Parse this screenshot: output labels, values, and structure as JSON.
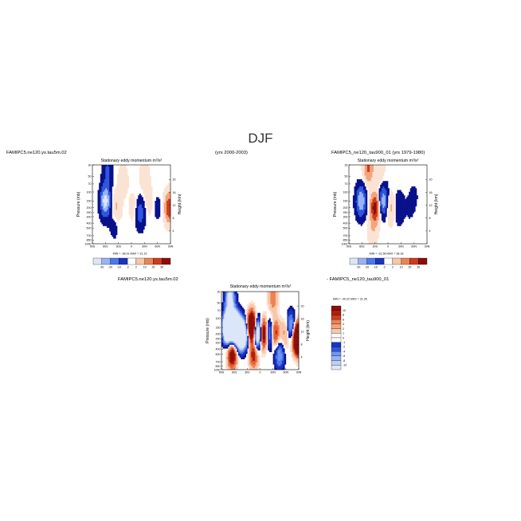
{
  "figure": {
    "title": "DJF",
    "years_top_middle": "(yrs 2000-2003)"
  },
  "colors": {
    "neg": [
      "#08108a",
      "#1a33c2",
      "#2c57de",
      "#4b79ea",
      "#7196f0",
      "#98b3f3",
      "#bccdf6",
      "#dce6fa"
    ],
    "pos": [
      "#fbe3d3",
      "#f8c6a8",
      "#f4a47c",
      "#ee8254",
      "#e25d33",
      "#cd3c1c",
      "#b0200c",
      "#8c0f07"
    ],
    "zero": "#ffffff"
  },
  "chart_data": [
    {
      "id": "panel-1",
      "type": "heatmap",
      "case_label": "FAMIPC5.ne120.ys.tau5m.02",
      "title": "Stationary eddy momentum m²/s²",
      "xlabel": "",
      "ylabel": "Pressure (mb)",
      "y2label": "Height (km)",
      "x_ticks": [
        "90S",
        "60S",
        "30S",
        "0",
        "30N",
        "60N",
        "90N"
      ],
      "y_ticks": [
        "30",
        "50",
        "70",
        "100",
        "150",
        "200",
        "250",
        "300",
        "400",
        "500",
        "700",
        "850",
        "1000"
      ],
      "y2_ticks": [
        "20",
        "16",
        "12",
        "8",
        "4"
      ],
      "min_max_text": "MIN = -38.91   MAX =  31.19",
      "levels": [
        -30,
        -20,
        -10,
        -2,
        2,
        10,
        20,
        30
      ],
      "colorbar_labels": [
        "-30",
        "-20",
        "-10",
        "-2",
        "2",
        "10",
        "20",
        "30"
      ],
      "features": [
        {
          "lat": -60,
          "p": 150,
          "value": -36
        },
        {
          "lat": -55,
          "p": 40,
          "value": -12
        },
        {
          "lat": -40,
          "p": 400,
          "value": -6
        },
        {
          "lat": -35,
          "p": 200,
          "value": 12
        },
        {
          "lat": -20,
          "p": 60,
          "value": 8
        },
        {
          "lat": 5,
          "p": 200,
          "value": 6
        },
        {
          "lat": 20,
          "p": 250,
          "value": -16
        },
        {
          "lat": 40,
          "p": 150,
          "value": 6
        },
        {
          "lat": 60,
          "p": 200,
          "value": -4
        },
        {
          "lat": 87,
          "p": 200,
          "value": 30
        },
        {
          "lat": 30,
          "p": 50,
          "value": 8
        }
      ]
    },
    {
      "id": "panel-2",
      "type": "heatmap",
      "case_label": "FAMIPC5_ne120_tau900_01 (yrs 1979-1980)",
      "title": "Stationary eddy momentum m²/s²",
      "xlabel": "",
      "ylabel": "Pressure (mb)",
      "y2label": "Height (km)",
      "x_ticks": [
        "90S",
        "60S",
        "30S",
        "0",
        "30N",
        "60N",
        "90N"
      ],
      "y_ticks": [
        "30",
        "50",
        "70",
        "100",
        "150",
        "200",
        "250",
        "300",
        "400",
        "500",
        "700",
        "850",
        "1000"
      ],
      "y2_ticks": [
        "20",
        "16",
        "12",
        "8",
        "4"
      ],
      "min_max_text": "MIN = -31.56   MAX =  38.18",
      "levels": [
        -30,
        -20,
        -10,
        -2,
        2,
        10,
        20,
        30
      ],
      "colorbar_labels": [
        "-30",
        "-20",
        "-10",
        "-2",
        "2",
        "10",
        "20",
        "30"
      ],
      "features": [
        {
          "lat": -62,
          "p": 150,
          "value": -30
        },
        {
          "lat": -30,
          "p": 200,
          "value": 36
        },
        {
          "lat": -35,
          "p": 600,
          "value": 8
        },
        {
          "lat": -10,
          "p": 150,
          "value": -28
        },
        {
          "lat": 5,
          "p": 200,
          "value": 14
        },
        {
          "lat": 25,
          "p": 200,
          "value": -10
        },
        {
          "lat": -45,
          "p": 35,
          "value": 22
        },
        {
          "lat": -20,
          "p": 35,
          "value": 10
        },
        {
          "lat": 50,
          "p": 200,
          "value": -3
        },
        {
          "lat": 60,
          "p": 120,
          "value": -3
        }
      ]
    },
    {
      "id": "panel-3",
      "type": "heatmap",
      "case_label": "FAMIPC5.ne120.ys.tau5m.02",
      "case_label_right": "- FAMIPC5_ne120_tau900_01",
      "title": "Stationary eddy momentum m²/s²",
      "xlabel": "",
      "ylabel": "Pressure (mb)",
      "y2label": "Height (km)",
      "x_ticks": [
        "90S",
        "60S",
        "30S",
        "0",
        "30N",
        "60N",
        "90N"
      ],
      "y_ticks": [
        "30",
        "50",
        "70",
        "100",
        "150",
        "200",
        "250",
        "300",
        "400",
        "500",
        "700",
        "850",
        "1000"
      ],
      "y2_ticks": [
        "20",
        "16",
        "12",
        "8",
        "4"
      ],
      "min_max_text": "MIN = -40.22   MAX =  31.35",
      "levels": [
        -10,
        -8,
        -6,
        -4,
        -2,
        -1,
        1,
        2,
        4,
        6,
        8,
        10
      ],
      "colorbar_labels": [
        "10",
        "8",
        "6",
        "4",
        "2",
        "1",
        "0",
        "-1",
        "-2",
        "-4",
        "-6",
        "-8",
        "-10"
      ],
      "features": [
        {
          "lat": -75,
          "p": 150,
          "value": -30
        },
        {
          "lat": -65,
          "p": 500,
          "value": 14
        },
        {
          "lat": -60,
          "p": 150,
          "value": -30
        },
        {
          "lat": -70,
          "p": 40,
          "value": -12
        },
        {
          "lat": -45,
          "p": 200,
          "value": -26
        },
        {
          "lat": -30,
          "p": 200,
          "value": -10
        },
        {
          "lat": -20,
          "p": 150,
          "value": 28
        },
        {
          "lat": -15,
          "p": 500,
          "value": 10
        },
        {
          "lat": -5,
          "p": 200,
          "value": -24
        },
        {
          "lat": 8,
          "p": 200,
          "value": 22
        },
        {
          "lat": 20,
          "p": 200,
          "value": -12
        },
        {
          "lat": 35,
          "p": 200,
          "value": 10
        },
        {
          "lat": 45,
          "p": 500,
          "value": -8
        },
        {
          "lat": 60,
          "p": 200,
          "value": 6
        },
        {
          "lat": 72,
          "p": 150,
          "value": -10
        },
        {
          "lat": 88,
          "p": 250,
          "value": 30
        },
        {
          "lat": 30,
          "p": 40,
          "value": 6
        }
      ]
    }
  ]
}
